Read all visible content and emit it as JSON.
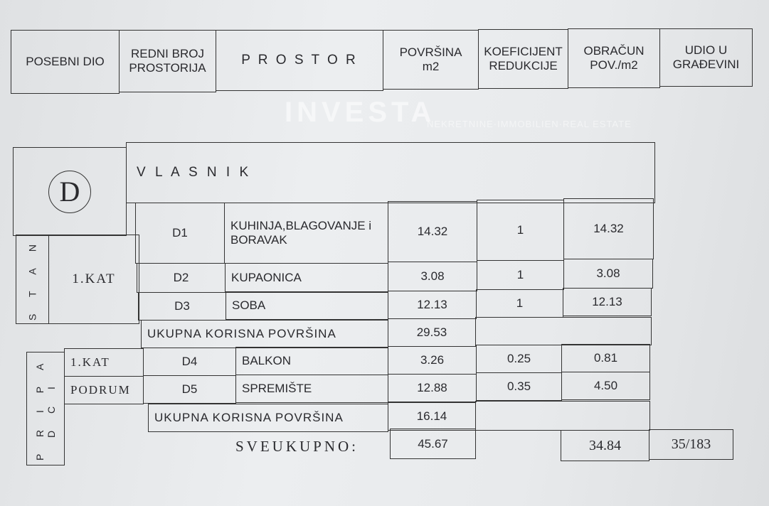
{
  "header": {
    "columns": [
      "POSEBNI DIO",
      "REDNI BROJ PROSTORIJA",
      "P R O S T O R",
      "POVRŠINA m2",
      "KOEFICIJENT REDUKCIJE",
      "OBRAČUN POV./m2",
      "UDIO U GRAĐEVINI"
    ]
  },
  "unit": {
    "letter": "D",
    "owner_label": "V L A S N I K"
  },
  "stan": {
    "group_label": "S T A N",
    "floor": "1.KAT",
    "rows": [
      {
        "id": "D1",
        "room": "KUHINJA,BLAGOVANJE i  BORAVAK",
        "area": "14.32",
        "coef": "1",
        "calc": "14.32"
      },
      {
        "id": "D2",
        "room": "KUPAONICA",
        "area": "3.08",
        "coef": "1",
        "calc": "3.08"
      },
      {
        "id": "D3",
        "room": "SOBA",
        "area": "12.13",
        "coef": "1",
        "calc": "12.13"
      }
    ],
    "total_label": "UKUPNA KORISNA POVRŠINA",
    "total": "29.53"
  },
  "pripadci": {
    "group_label": "P R I P A D C I",
    "rows": [
      {
        "floor": "1.KAT",
        "id": "D4",
        "room": "BALKON",
        "area": "3.26",
        "coef": "0.25",
        "calc": "0.81"
      },
      {
        "floor": "PODRUM",
        "id": "D5",
        "room": "SPREMIŠTE",
        "area": "12.88",
        "coef": "0.35",
        "calc": "4.50"
      }
    ],
    "total_label": "UKUPNA KORISNA POVRŠINA",
    "total": "16.14"
  },
  "grand_total": {
    "label": "SVEUKUPNO:",
    "area": "45.67",
    "calc": "34.84",
    "share": "35/183"
  },
  "watermark": {
    "brand": "INVESTA",
    "tagline": "NEKRETNINE·IMMOBILIEN·REAL ESTATE"
  }
}
